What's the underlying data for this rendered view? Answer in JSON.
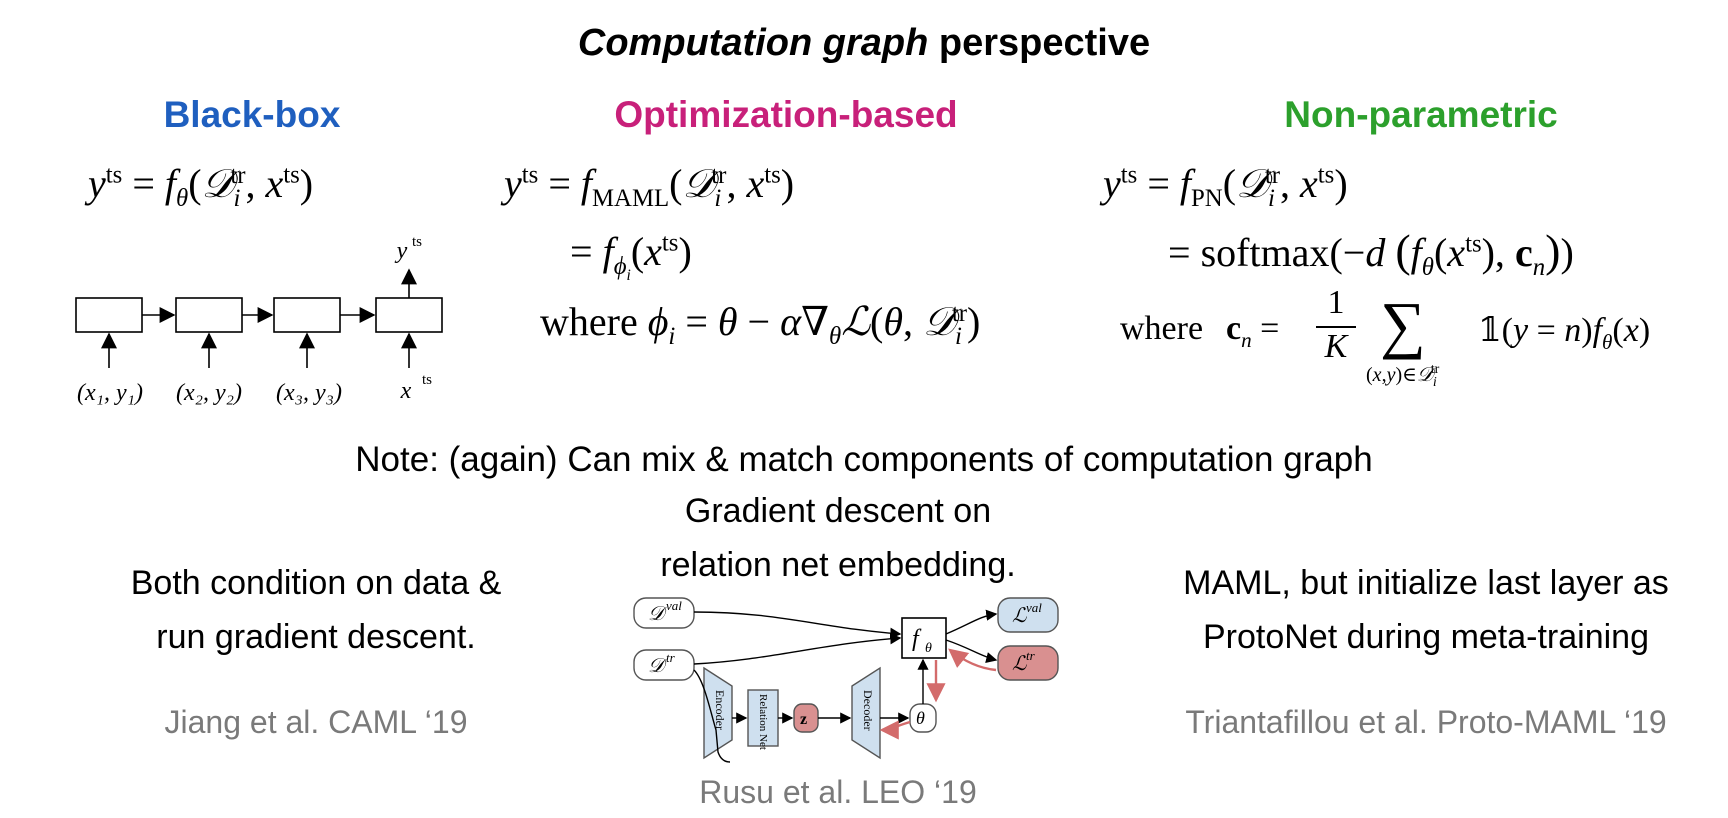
{
  "title": {
    "italic": "Computation graph",
    "rest": "perspective"
  },
  "columns": {
    "blackbox": {
      "heading": "Black-box",
      "color": "#1f5fbf"
    },
    "optimization": {
      "heading": "Optimization-based",
      "color": "#c8207a"
    },
    "nonparametric": {
      "heading": "Non-parametric",
      "color": "#2ca02c"
    }
  },
  "blackbox_diagram": {
    "inputs": [
      "(x₁, y₁)",
      "(x₂, y₂)",
      "(x₃, y₃)",
      "x"
    ],
    "inputs_sup": "ts",
    "output": "y",
    "output_sup": "ts"
  },
  "optimization_eq": {
    "where": "where"
  },
  "nonparam_eq": {
    "softmax": "softmax",
    "where": "where"
  },
  "note": "Note: (again) Can mix & match components of computation graph",
  "bottom": {
    "left_line1": "Both condition on data &",
    "left_line2": "run gradient descent.",
    "left_cite": "Jiang et al. CAML ‘19",
    "middle_line1": "Gradient descent on",
    "middle_line2": "relation net embedding.",
    "middle_cite": "Rusu et al. LEO ‘19",
    "right_line1": "MAML, but initialize last layer as",
    "right_line2": "ProtoNet during meta-training",
    "right_cite": "Triantafillou et al. Proto-MAML ‘19"
  },
  "leo_diagram": {
    "dval": "val",
    "dtr": "tr",
    "f_theta": "θ",
    "lval": "val",
    "ltr": "tr",
    "encoder": "Encoder",
    "relation": "Relation Net",
    "z": "z",
    "decoder": "Decoder",
    "theta": "θ",
    "box_fill": "#cfe0ef",
    "red": "#d36b6b"
  }
}
